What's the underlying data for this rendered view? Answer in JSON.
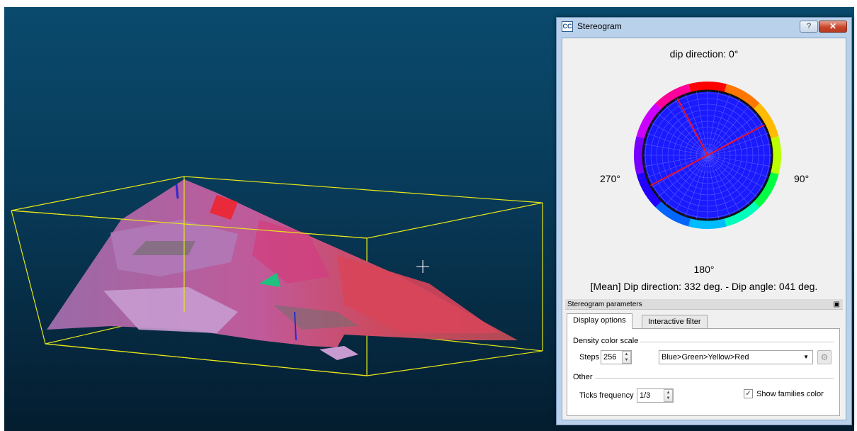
{
  "dialog": {
    "title": "Stereogram",
    "app_icon_text": "CC",
    "help_symbol": "?",
    "close_symbol": "✕"
  },
  "stereogram": {
    "label_top": "dip direction: 0°",
    "label_left": "270°",
    "label_right": "90°",
    "label_bottom": "180°",
    "mean_text": "[Mean] Dip direction: 332 deg. - Dip angle: 041 deg.",
    "mean_dip_direction_deg": 332,
    "mean_dip_angle_deg": 41,
    "fill_color": "#1a1aff",
    "line_color": "#e8102a"
  },
  "params": {
    "header": "Stereogram parameters",
    "float_icon": "restore-icon",
    "tabs": [
      "Display options",
      "Interactive filter"
    ],
    "active_tab": "Display options",
    "density_group_label": "Density color scale",
    "steps_label": "Steps",
    "steps_value": "256",
    "color_scale_value": "Blue>Green>Yellow>Red",
    "other_group_label": "Other",
    "ticks_label": "Ticks frequency",
    "ticks_value": "1/3",
    "show_families_label": "Show families color",
    "show_families_checked": true
  },
  "viewport": {
    "background_top": "#0a4a6d",
    "background_bottom": "#041d2f",
    "bbox_color": "#e6e619"
  }
}
